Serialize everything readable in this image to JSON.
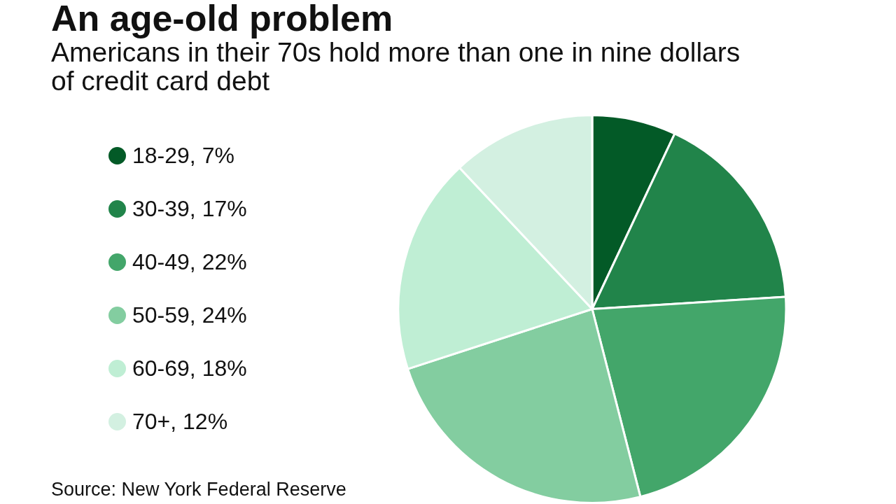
{
  "chart_data": {
    "type": "pie",
    "title": "An age-old problem",
    "subtitle": "Americans in their 70s hold more than one in nine dollars of credit card debt",
    "categories": [
      "18-29",
      "30-39",
      "40-49",
      "50-59",
      "60-69",
      "70+"
    ],
    "values": [
      7,
      17,
      22,
      24,
      18,
      12
    ],
    "value_labels": [
      "7%",
      "17%",
      "22%",
      "24%",
      "18%",
      "12%"
    ],
    "colors": [
      "#035a27",
      "#21844a",
      "#43a66a",
      "#83cda0",
      "#bfeed4",
      "#d3f0e1"
    ],
    "legend": "left",
    "annotations": [
      "Source: New York Federal Reserve"
    ]
  }
}
